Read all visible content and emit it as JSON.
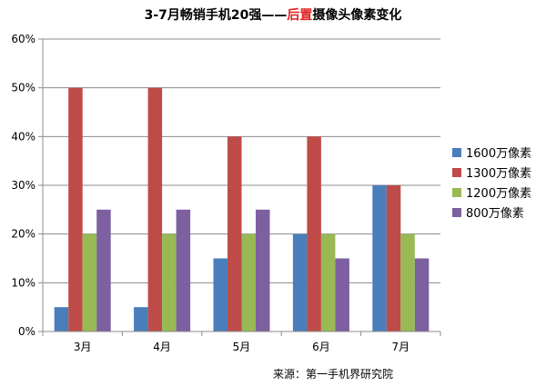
{
  "chart_data": {
    "type": "bar",
    "title_parts": [
      "3-7月畅销手机20强——",
      "后置",
      "摄像头像素变化"
    ],
    "categories": [
      "3月",
      "4月",
      "5月",
      "6月",
      "7月"
    ],
    "ylim": [
      0,
      60
    ],
    "yticks": [
      0,
      10,
      20,
      30,
      40,
      50,
      60
    ],
    "ytick_labels": [
      "0%",
      "10%",
      "20%",
      "30%",
      "40%",
      "50%",
      "60%"
    ],
    "grid": true,
    "legend_position": "right",
    "series": [
      {
        "name": "1600万像素",
        "color": "#4a7ebb",
        "values": [
          5,
          5,
          15,
          20,
          30
        ]
      },
      {
        "name": "1300万像素",
        "color": "#be4b48",
        "values": [
          50,
          50,
          40,
          40,
          30
        ]
      },
      {
        "name": "1200万像素",
        "color": "#98b954",
        "values": [
          20,
          20,
          20,
          20,
          20
        ]
      },
      {
        "name": "800万像素",
        "color": "#7d60a0",
        "values": [
          25,
          25,
          25,
          15,
          15
        ]
      }
    ],
    "source": "来源：第一手机界研究院"
  }
}
